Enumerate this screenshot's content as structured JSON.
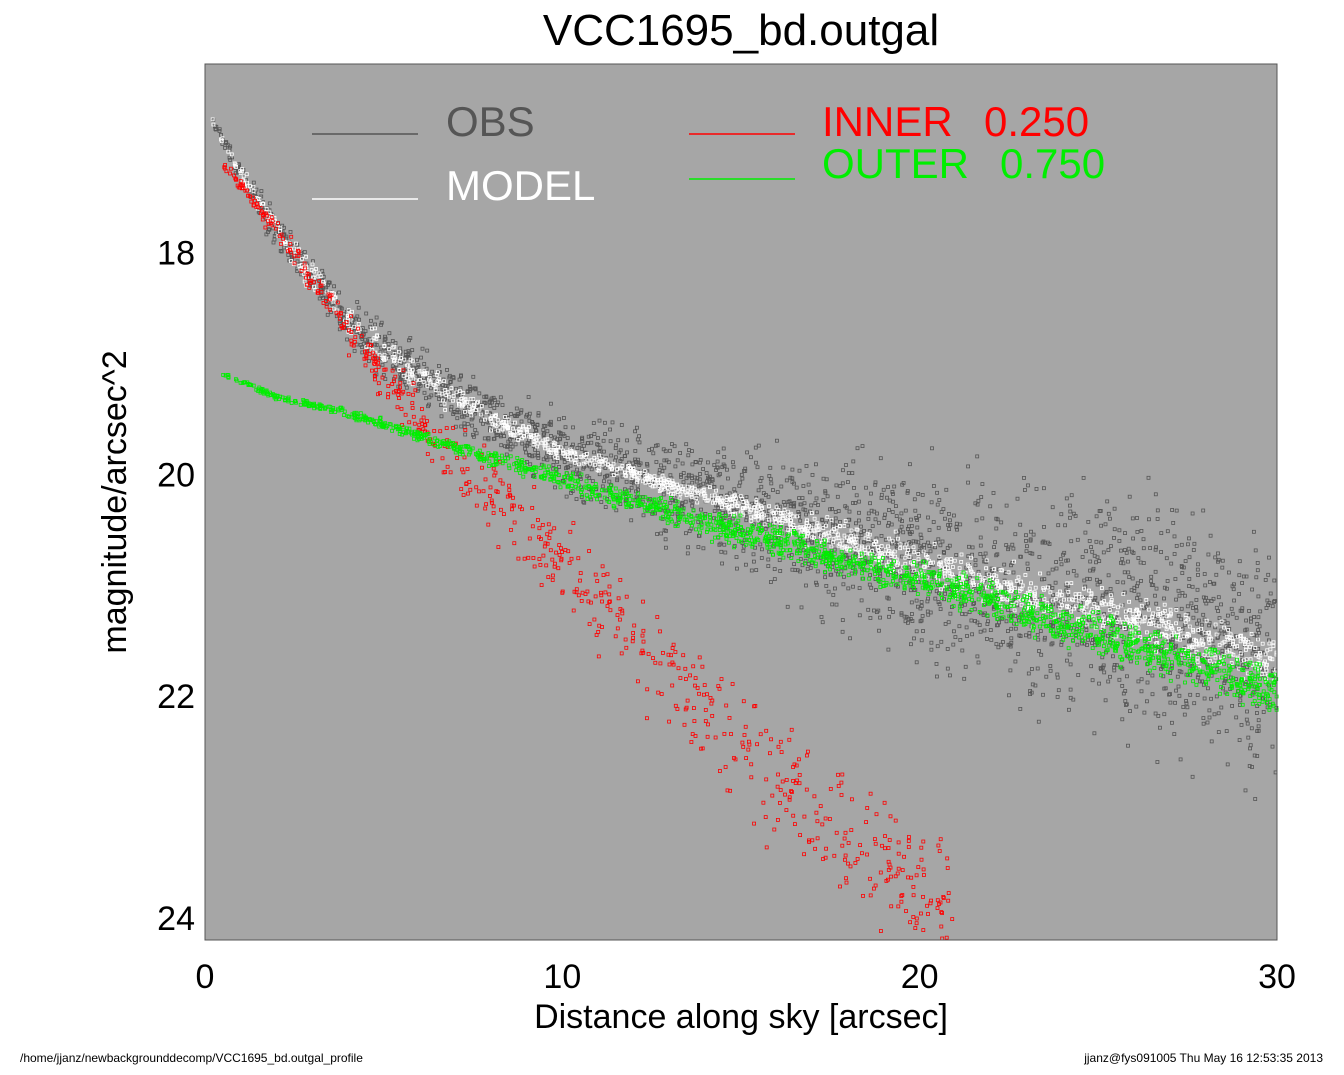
{
  "chart_data": {
    "type": "scatter",
    "title": "VCC1695_bd.outgal",
    "xlabel": "Distance along sky [arcsec]",
    "ylabel": "magnitude/arcsec^2",
    "xlim": [
      0,
      30
    ],
    "ylim": [
      16.3,
      24.2
    ],
    "y_inverted": true,
    "xticks": [
      0,
      10,
      20,
      30
    ],
    "yticks": [
      18,
      20,
      22,
      24
    ],
    "grid": false,
    "background": "#a6a6a6",
    "legend": [
      {
        "label": "OBS",
        "value": "",
        "color": "#555555"
      },
      {
        "label": "MODEL",
        "value": "",
        "color": "#ffffff"
      },
      {
        "label": "INNER",
        "value": "0.250",
        "color": "#ff0000"
      },
      {
        "label": "OUTER",
        "value": "0.750",
        "color": "#00ee00"
      }
    ],
    "series": [
      {
        "name": "OBS",
        "color": "#555555",
        "x": [
          0.2,
          1,
          2,
          3,
          4,
          5,
          6,
          8,
          10,
          12,
          15,
          18,
          20,
          23,
          26,
          30
        ],
        "y": [
          16.8,
          17.3,
          17.8,
          18.2,
          18.6,
          18.9,
          19.1,
          19.5,
          19.8,
          20.0,
          20.3,
          20.6,
          20.8,
          21.1,
          21.3,
          21.7
        ],
        "scatter_half_width": [
          0.05,
          0.15,
          0.25,
          0.3,
          0.3,
          0.35,
          0.35,
          0.4,
          0.5,
          0.6,
          0.8,
          1.0,
          1.2,
          1.4,
          1.5,
          1.6
        ]
      },
      {
        "name": "MODEL",
        "color": "#ffffff",
        "x": [
          0.2,
          1,
          2,
          3,
          4,
          5,
          6,
          8,
          10,
          12,
          15,
          18,
          20,
          23,
          26,
          30
        ],
        "y": [
          16.8,
          17.3,
          17.8,
          18.2,
          18.6,
          18.9,
          19.1,
          19.5,
          19.8,
          20.0,
          20.3,
          20.6,
          20.8,
          21.1,
          21.3,
          21.7
        ],
        "scatter_half_width": [
          0.05,
          0.1,
          0.15,
          0.2,
          0.2,
          0.2,
          0.2,
          0.15,
          0.1,
          0.1,
          0.15,
          0.2,
          0.25,
          0.3,
          0.3,
          0.3
        ]
      },
      {
        "name": "INNER",
        "color": "#ff0000",
        "x": [
          0.5,
          1.5,
          2.5,
          3.5,
          4.5,
          5.5,
          6.5,
          8,
          10,
          12,
          14,
          16,
          18,
          20,
          21
        ],
        "y": [
          17.2,
          17.6,
          18.0,
          18.5,
          18.9,
          19.3,
          19.7,
          20.2,
          20.8,
          21.5,
          22.1,
          22.7,
          23.3,
          23.8,
          24.1
        ],
        "scatter_half_width": [
          0.05,
          0.1,
          0.15,
          0.2,
          0.3,
          0.35,
          0.4,
          0.5,
          0.6,
          0.7,
          0.8,
          0.85,
          0.9,
          0.95,
          1.0
        ]
      },
      {
        "name": "OUTER",
        "color": "#00ee00",
        "x": [
          0.5,
          2,
          4,
          6,
          8,
          10,
          12,
          14,
          16,
          18,
          20,
          22,
          24,
          26,
          28,
          30
        ],
        "y": [
          19.1,
          19.3,
          19.45,
          19.65,
          19.85,
          20.05,
          20.25,
          20.45,
          20.6,
          20.8,
          20.95,
          21.15,
          21.35,
          21.55,
          21.75,
          21.95
        ],
        "scatter_half_width": [
          0.02,
          0.04,
          0.06,
          0.08,
          0.1,
          0.12,
          0.14,
          0.16,
          0.18,
          0.2,
          0.22,
          0.24,
          0.26,
          0.28,
          0.3,
          0.3
        ]
      }
    ]
  },
  "footer": {
    "path": "/home/jjanz/newbackgrounddecomp/VCC1695_bd.outgal_profile",
    "stamp": "jjanz@fys091005  Thu May 16 12:53:35 2013"
  }
}
